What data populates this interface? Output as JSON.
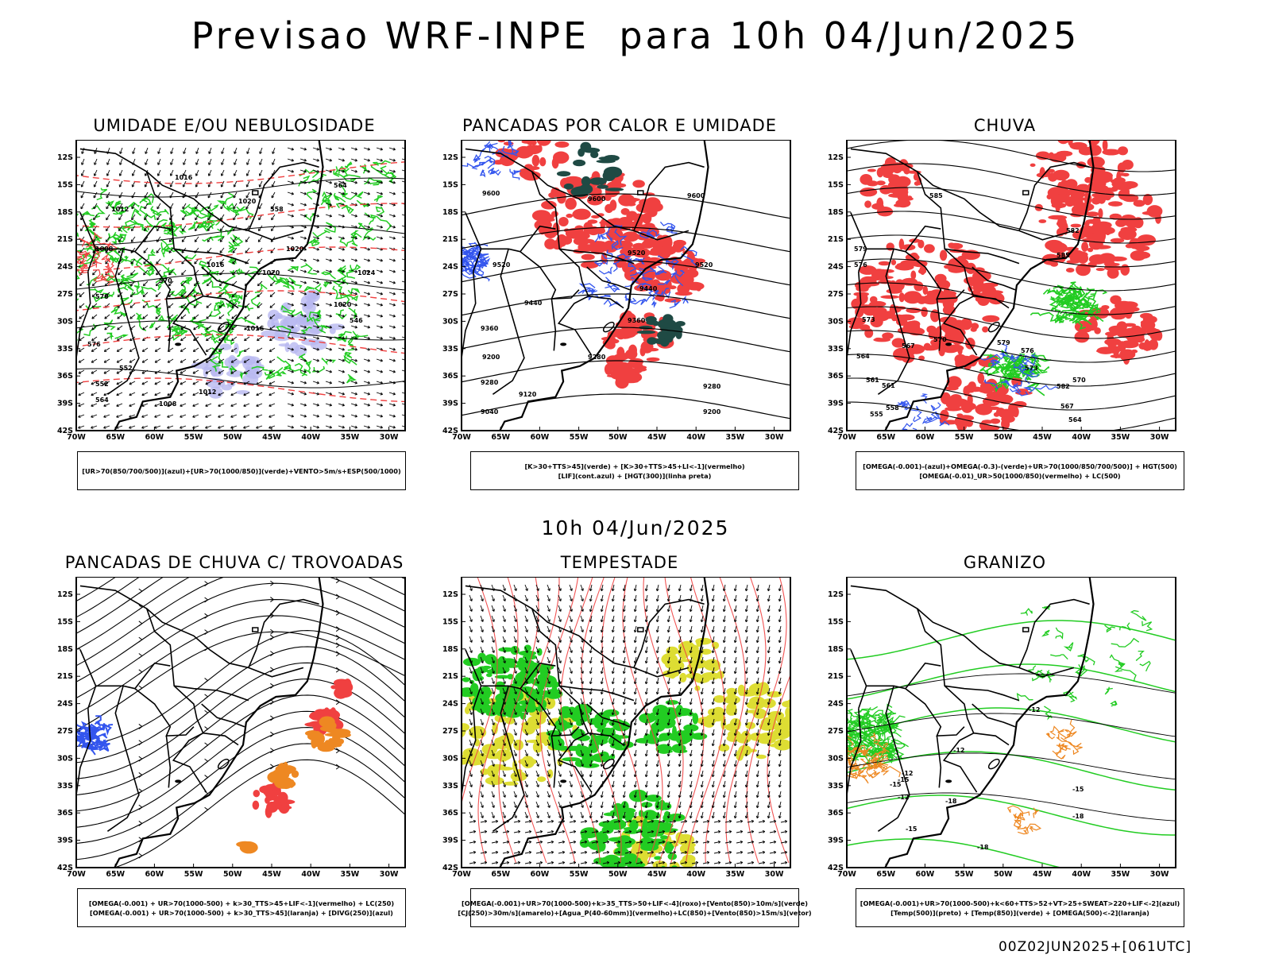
{
  "title": "Previsao WRF-INPE  para 10h 04/Jun/2025",
  "mid_date": "10h 04/Jun/2025",
  "footer": "00Z02JUN2025+[061UTC]",
  "axes": {
    "lat_labels": [
      "12S",
      "15S",
      "18S",
      "21S",
      "24S",
      "27S",
      "30S",
      "33S",
      "36S",
      "39S",
      "42S"
    ],
    "lon_labels": [
      "70W",
      "65W",
      "60W",
      "55W",
      "50W",
      "45W",
      "40W",
      "35W",
      "30W"
    ]
  },
  "colors": {
    "red": "#f04040",
    "green": "#22cc22",
    "blue": "#3355ee",
    "lavender": "#b8b8f0",
    "darkteal": "#1f4a44",
    "yellow": "#dddd33",
    "orange": "#ee8822",
    "black": "#000000"
  },
  "panels": [
    {
      "title": "UMIDADE E/OU NEBULOSIDADE",
      "legend": [
        "[UR>70(850/700/500)](azul)+[UR>70(1000/850)](verde)+VENTO>5m/s+ESP(500/1000)"
      ],
      "labels": [
        "1016",
        "1020",
        "1012",
        "1008",
        "1016",
        "1020",
        "1020",
        "1024",
        "1020",
        "1016",
        "1012",
        "1008",
        "570",
        "576",
        "552",
        "546",
        "564",
        "558",
        "570",
        "564",
        "552"
      ]
    },
    {
      "title": "PANCADAS POR CALOR E UMIDADE",
      "legend": [
        "[K>30+TTS>45](verde) + [K>30+TTS>45+LI<-1](vermelho)",
        "[LIF](cont.azul) + [HGT(300)](linha preta)"
      ],
      "labels": [
        "9600",
        "9600",
        "9520",
        "9440",
        "9360",
        "9280",
        "9200",
        "9120",
        "9040",
        "9520",
        "9440",
        "9360",
        "9280",
        "9200",
        "9600",
        "9520",
        "9280"
      ]
    },
    {
      "title": "CHUVA",
      "legend": [
        "[OMEGA(-0.001)-(azul)+OMEGA(-0.3)-(verde)+UR>70(1000/850/700/500)] + HGT(500)",
        "[OMEGA(-0.01)_UR>50(1000/850)(vermelho) + LC(500)"
      ],
      "labels": [
        "585",
        "582",
        "585",
        "579",
        "576",
        "573",
        "570",
        "567",
        "564",
        "561",
        "558",
        "555",
        "582",
        "579",
        "576",
        "573",
        "570",
        "567",
        "564",
        "561"
      ]
    },
    {
      "title": "PANCADAS DE CHUVA C/ TROVOADAS",
      "legend": [
        "[OMEGA(-0.001) + UR>70(1000-500) + k>30_TTS>45+LIF<-1](vermelho) + LC(250)",
        "[OMEGA(-0.001) + UR>70(1000-500) + k>30_TTS>45](laranja) + [DIVG(250)](azul)"
      ],
      "labels": []
    },
    {
      "title": "TEMPESTADE",
      "legend": [
        "[OMEGA(-0.001)+UR>70(1000-500)+k>35_TTS>50+LIF<-4](roxo)+[Vento(850)>10m/s](verde)",
        "[CJ(250)>30m/s](amarelo)+[Agua_P(40-60mm)](vermelho)+LC(850)+[Vento(850)>15m/s](vetor)"
      ],
      "labels": []
    },
    {
      "title": "GRANIZO",
      "legend": [
        "[OMEGA(-0.001)+UR>70(1000-500)+k<60+TTS>52+VT>25+SWEAT>220+LIF<-2](azul)",
        "[Temp(500)](preto) + [Temp(850)](verde) + [OMEGA(500)<-2](laranja)"
      ],
      "labels": [
        "-12",
        "-12",
        "-12",
        "-15",
        "-15",
        "-18",
        "-18",
        "-15",
        "-12",
        "-15",
        "-18"
      ]
    }
  ]
}
